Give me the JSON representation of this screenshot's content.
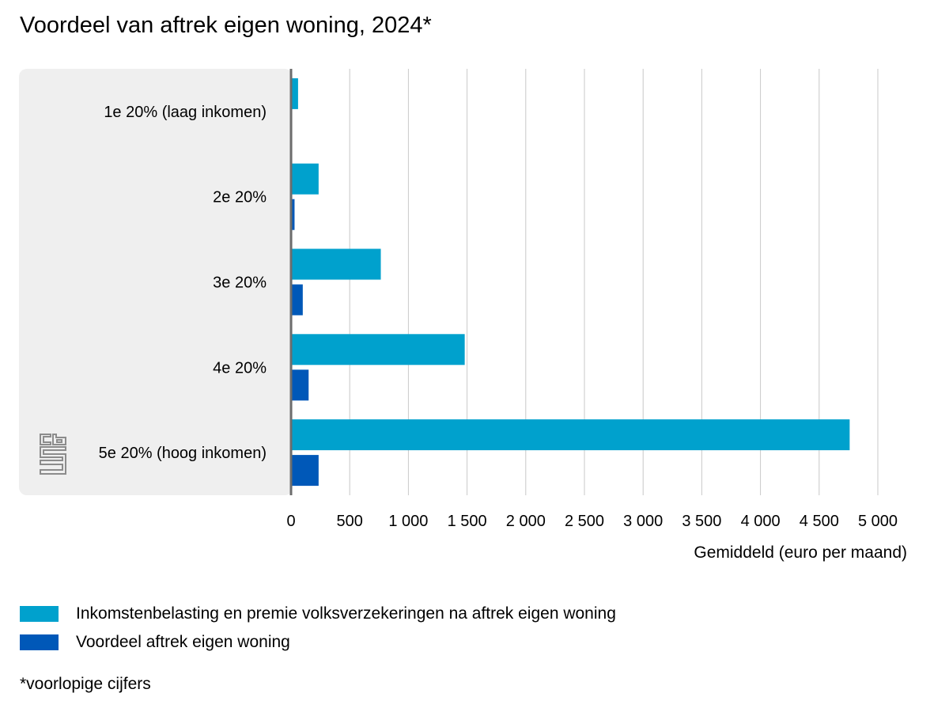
{
  "chart_data": {
    "type": "bar",
    "orientation": "horizontal",
    "title": "Voordeel van aftrek eigen woning, 2024*",
    "categories": [
      "1e 20% (laag inkomen)",
      "2e 20%",
      "3e 20%",
      "4e 20%",
      "5e 20% (hoog inkomen)"
    ],
    "series": [
      {
        "name": "Inkomstenbelasting en premie volksverzekeringen na aftrek eigen woning",
        "color": "#00a1cd",
        "values": [
          60,
          235,
          765,
          1480,
          4760
        ]
      },
      {
        "name": "Voordeel aftrek eigen woning",
        "color": "#0058b8",
        "values": [
          10,
          30,
          100,
          150,
          235
        ]
      }
    ],
    "xlabel": "Gemiddeld (euro per maand)",
    "xlim": [
      0,
      5000
    ],
    "xticks": [
      0,
      500,
      1000,
      1500,
      2000,
      2500,
      3000,
      3500,
      4000,
      4500,
      5000
    ],
    "xtick_labels": [
      "0",
      "500",
      "1 000",
      "1 500",
      "2 000",
      "2 500",
      "3 000",
      "3 500",
      "4 000",
      "4 500",
      "5 000"
    ],
    "grid": true,
    "legend_position": "bottom",
    "footnote": "*voorlopige cijfers",
    "logo_icon": "cbs-logo-icon"
  }
}
